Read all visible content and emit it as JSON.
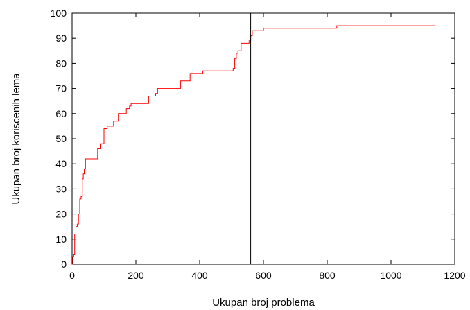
{
  "chart_data": {
    "type": "line",
    "xlabel": "Ukupan broj problema",
    "ylabel": "Ukupan broj koriscenih lema",
    "xlim": [
      0,
      1200
    ],
    "ylim": [
      0,
      100
    ],
    "x_ticks": [
      0,
      200,
      400,
      600,
      800,
      1000,
      1200
    ],
    "y_ticks": [
      0,
      10,
      20,
      30,
      40,
      50,
      60,
      70,
      80,
      90,
      100
    ],
    "grid": false,
    "legend": "none",
    "series_color": "#ff0000",
    "vline_color": "#000000",
    "vline_x": 560,
    "series": [
      {
        "step": true,
        "x": [
          0,
          2,
          5,
          8,
          12,
          16,
          20,
          24,
          28,
          32,
          35,
          38,
          42,
          46,
          80,
          88,
          100,
          105,
          110,
          118,
          130,
          145,
          170,
          180,
          185,
          240,
          262,
          268,
          340,
          370,
          410,
          505,
          510,
          515,
          520,
          530,
          555,
          560,
          565,
          600,
          830,
          1140
        ],
        "y": [
          0,
          3,
          4,
          12,
          15,
          16,
          20,
          26,
          27,
          34,
          36,
          38,
          42,
          42,
          46,
          48,
          54,
          54,
          55,
          55,
          57,
          60,
          62,
          63,
          64,
          67,
          68,
          70,
          73,
          76,
          77,
          78,
          82,
          84,
          85,
          88,
          89,
          91,
          93,
          94,
          95,
          95
        ]
      }
    ]
  }
}
